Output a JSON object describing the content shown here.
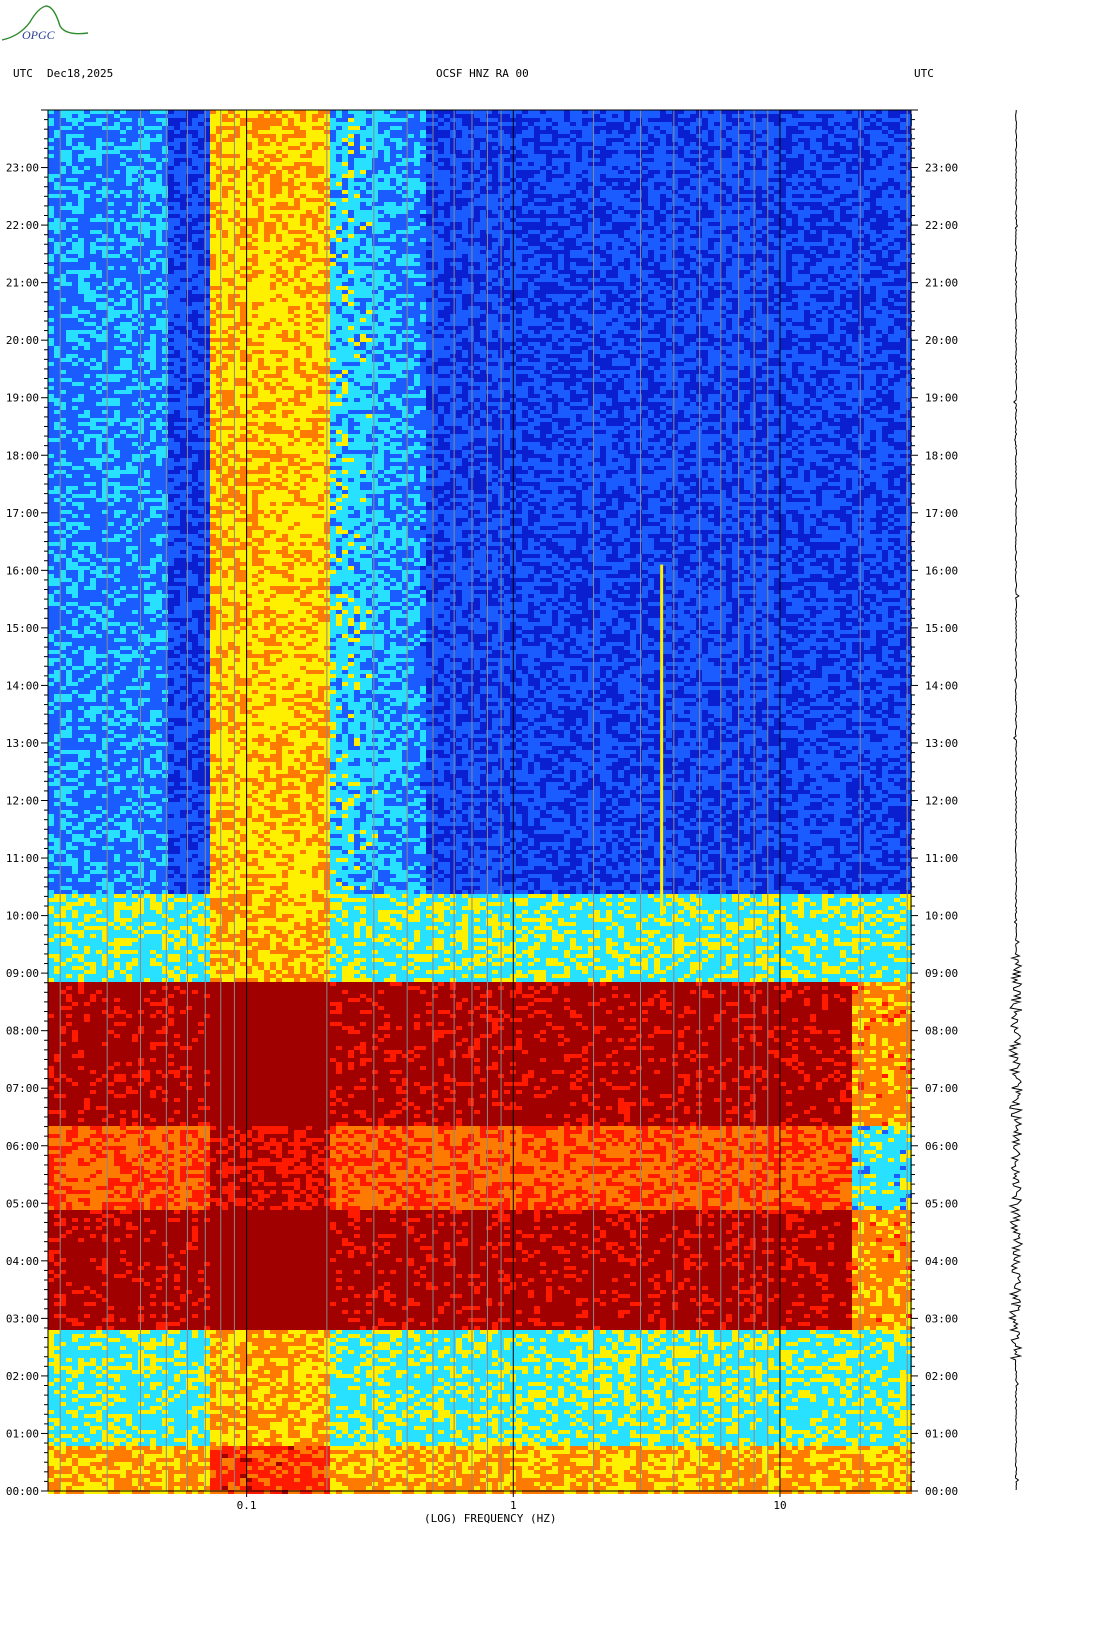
{
  "header": {
    "logo_text": "OPGC",
    "left_label": "UTC",
    "date": "Dec18,2025",
    "station": "OCSF HNZ RA 00",
    "right_label": "UTC"
  },
  "colors": {
    "deep_blue": "#0a1fd0",
    "blue": "#1a5cff",
    "cyan": "#28e0ff",
    "yellow": "#fff000",
    "orange": "#ff7a00",
    "red": "#ff1a00",
    "dark_red": "#a00000"
  },
  "chart_data": {
    "type": "heatmap",
    "title": "OCSF HNZ RA 00",
    "xlabel": "(LOG) FREQUENCY (HZ)",
    "x_scale": "log",
    "x_ticks": [
      "0.1",
      "1",
      "10"
    ],
    "xlim": [
      0.018,
      31
    ],
    "y_axis_label": "UTC",
    "y_ticks": [
      "00:00",
      "01:00",
      "02:00",
      "03:00",
      "04:00",
      "05:00",
      "06:00",
      "07:00",
      "08:00",
      "09:00",
      "10:00",
      "11:00",
      "12:00",
      "13:00",
      "14:00",
      "15:00",
      "16:00",
      "17:00",
      "18:00",
      "19:00",
      "20:00",
      "21:00",
      "22:00",
      "23:00"
    ],
    "ylim_hours": [
      0,
      24
    ],
    "bands": [
      {
        "start_h": 0.0,
        "end_h": 0.85,
        "level": "high-low"
      },
      {
        "start_h": 0.85,
        "end_h": 2.8,
        "level": "moderate"
      },
      {
        "start_h": 2.8,
        "end_h": 4.9,
        "level": "saturated"
      },
      {
        "start_h": 4.9,
        "end_h": 6.4,
        "level": "very-high"
      },
      {
        "start_h": 6.4,
        "end_h": 8.9,
        "level": "saturated"
      },
      {
        "start_h": 8.9,
        "end_h": 10.4,
        "level": "moderate"
      },
      {
        "start_h": 10.4,
        "end_h": 24.0,
        "level": "quiet"
      }
    ],
    "microseism_band_hz": [
      0.07,
      0.2
    ],
    "tremor_line": {
      "freq_hz": 3.6,
      "start_h": 10.0,
      "end_h": 16.1
    },
    "seismogram_activity_hours": [
      2.3,
      9.3
    ]
  }
}
